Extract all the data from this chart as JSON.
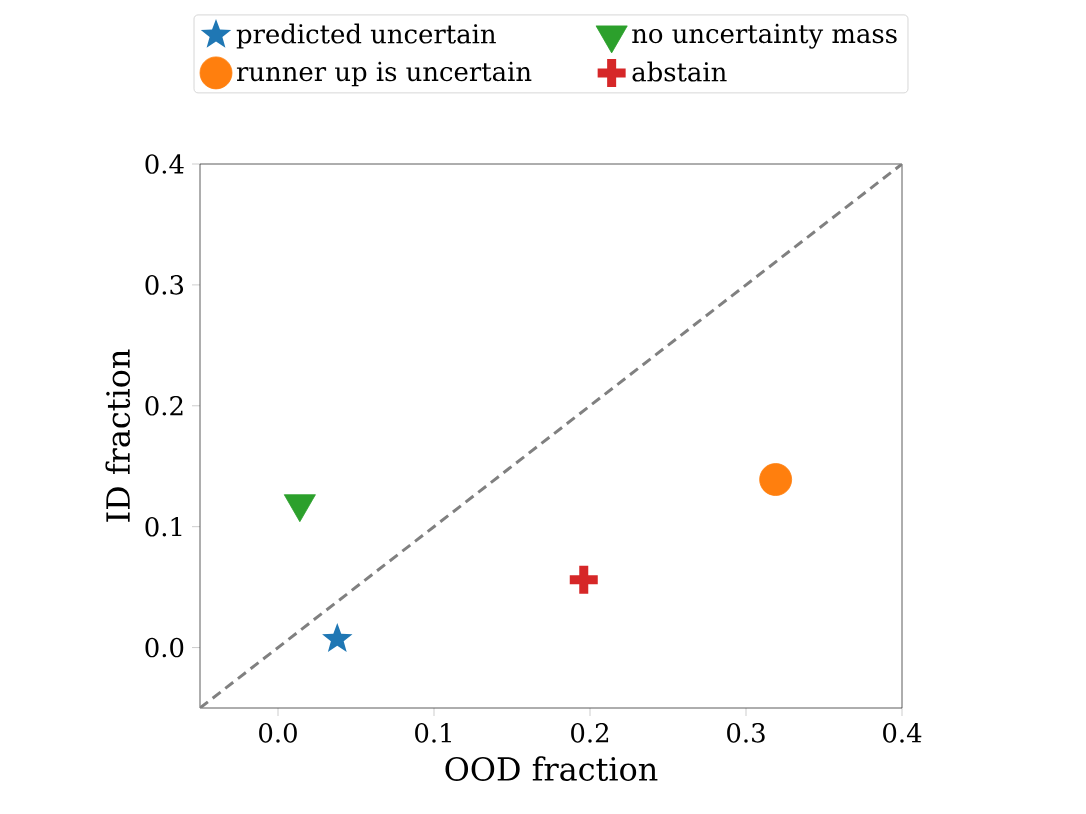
{
  "chart_data": {
    "type": "scatter",
    "xlabel": "OOD fraction",
    "ylabel": "ID fraction",
    "xlim": [
      -0.05,
      0.4
    ],
    "ylim": [
      -0.05,
      0.4
    ],
    "xticks": [
      {
        "value": 0,
        "label": "0.0"
      },
      0.1,
      0.2,
      0.3,
      0.4
    ],
    "yticks": [
      {
        "value": 0,
        "label": "0.0"
      },
      0.1,
      0.2,
      0.3,
      0.4
    ],
    "legend": "top",
    "series": [
      {
        "name": "predicted uncertain",
        "color": "#1f77b4",
        "marker": "star",
        "x": [
          0.038
        ],
        "values": [
          0.007
        ]
      },
      {
        "name": "no uncertainty mass",
        "color": "#2ca02c",
        "marker": "triangle",
        "x": [
          0.014
        ],
        "values": [
          0.119
        ]
      },
      {
        "name": "runner up is uncertain",
        "color": "#ff7f0e",
        "marker": "circle",
        "x": [
          0.319
        ],
        "values": [
          0.139
        ]
      },
      {
        "name": "abstain",
        "color": "#d62728",
        "marker": "cross",
        "x": [
          0.196
        ],
        "values": [
          0.056
        ]
      },
      {
        "type": "line",
        "color": "#808080",
        "line_style": "dashed",
        "marker": "none",
        "x": [
          -0.05,
          0.4
        ],
        "values": [
          -0.05,
          0.4
        ]
      }
    ]
  }
}
